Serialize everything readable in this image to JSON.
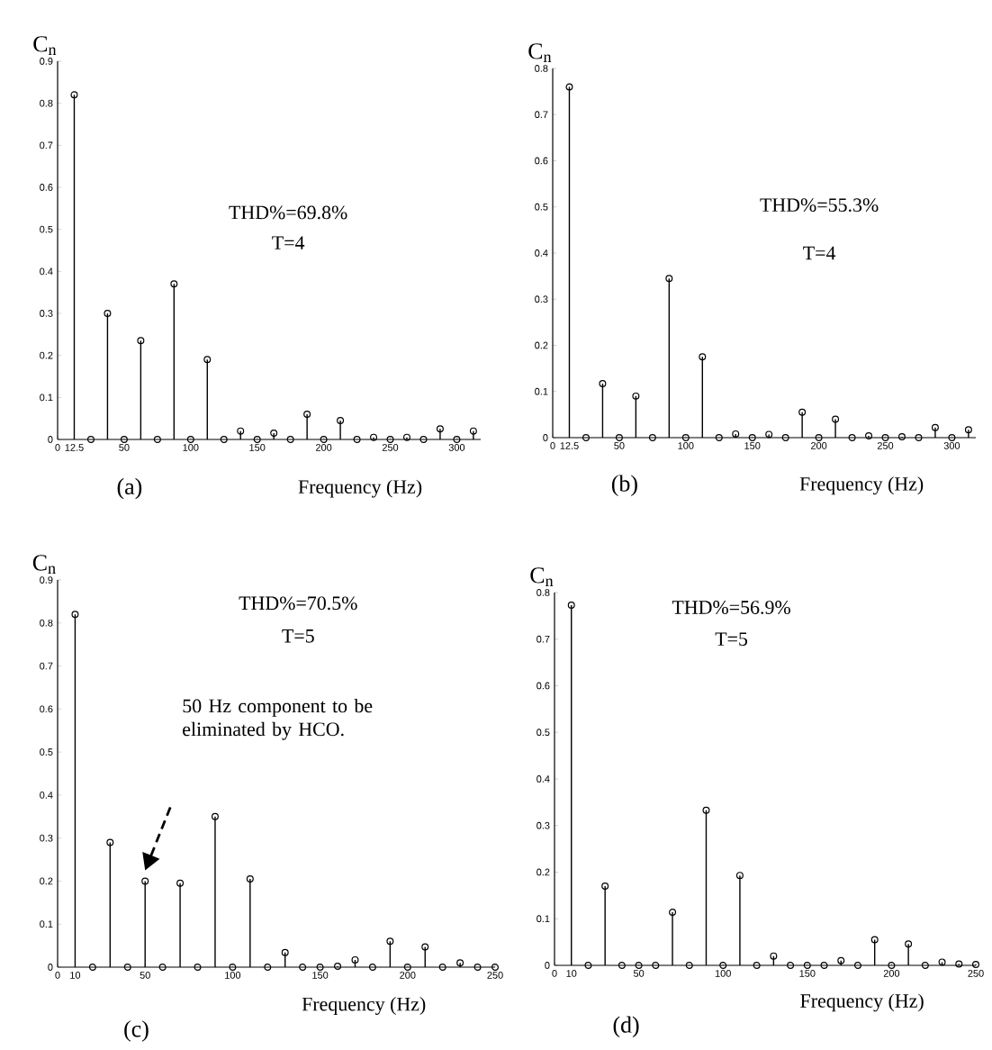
{
  "chart_data": [
    {
      "type": "lollipop",
      "ylabel": "C$_{n}$",
      "xlabel": "Frequency (Hz)",
      "color": "#000000",
      "marker": "circle",
      "x": [
        12.5,
        25,
        37.5,
        50,
        62.5,
        75,
        87.5,
        100,
        112.5,
        125,
        137.5,
        150,
        162.5,
        175,
        187.5,
        200,
        212.5,
        225,
        237.5,
        250,
        262.5,
        275,
        287.5,
        300,
        312.5
      ],
      "values": [
        0.82,
        0,
        0.3,
        0,
        0.235,
        0,
        0.37,
        0,
        0.19,
        0,
        0.02,
        0,
        0.015,
        0,
        0.06,
        0,
        0.045,
        0,
        0.005,
        0,
        0.005,
        0,
        0.025,
        0,
        0.02
      ],
      "xlim": [
        0,
        318
      ],
      "ylim": [
        0,
        0.9
      ],
      "xticks": [
        0,
        12.5,
        50,
        100,
        150,
        200,
        250,
        300
      ],
      "yticks": [
        0,
        0.1,
        0.2,
        0.3,
        0.4,
        0.5,
        0.6,
        0.7,
        0.8,
        0.9
      ],
      "annotations": [
        "THD%=69.8%",
        "T=4",
        "(a)"
      ]
    },
    {
      "type": "lollipop",
      "ylabel": "C$_{n}$",
      "xlabel": "Frequency (Hz)",
      "color": "#000000",
      "marker": "circle",
      "x": [
        12.5,
        25,
        37.5,
        50,
        62.5,
        75,
        87.5,
        100,
        112.5,
        125,
        137.5,
        150,
        162.5,
        175,
        187.5,
        200,
        212.5,
        225,
        237.5,
        250,
        262.5,
        275,
        287.5,
        300,
        312.5
      ],
      "values": [
        0.76,
        0,
        0.117,
        0,
        0.09,
        0,
        0.345,
        0,
        0.175,
        0,
        0.008,
        0,
        0.007,
        0,
        0.055,
        0,
        0.04,
        0,
        0.004,
        0,
        0.002,
        0,
        0.022,
        0,
        0.017
      ],
      "xlim": [
        0,
        318
      ],
      "ylim": [
        0,
        0.8
      ],
      "xticks": [
        0,
        12.5,
        50,
        100,
        150,
        200,
        250,
        300
      ],
      "yticks": [
        0,
        0.1,
        0.2,
        0.3,
        0.4,
        0.5,
        0.6,
        0.7,
        0.8
      ],
      "annotations": [
        "THD%=55.3%",
        "T=4",
        "(b)"
      ]
    },
    {
      "type": "lollipop",
      "ylabel": "C$_{n}$",
      "xlabel": "Frequency (Hz)",
      "color": "#000000",
      "marker": "circle",
      "x": [
        10,
        20,
        30,
        40,
        50,
        60,
        70,
        80,
        90,
        100,
        110,
        120,
        130,
        140,
        150,
        160,
        170,
        180,
        190,
        200,
        210,
        220,
        230,
        240,
        250
      ],
      "values": [
        0.82,
        0,
        0.29,
        0,
        0.2,
        0,
        0.195,
        0,
        0.35,
        0,
        0.205,
        0,
        0.034,
        0,
        0,
        0.002,
        0.017,
        0,
        0.06,
        0,
        0.047,
        0,
        0.01,
        0,
        0
      ],
      "xlim": [
        0,
        250
      ],
      "ylim": [
        0,
        0.9
      ],
      "xticks": [
        0,
        10,
        50,
        100,
        150,
        200,
        250
      ],
      "yticks": [
        0,
        0.1,
        0.2,
        0.3,
        0.4,
        0.5,
        0.6,
        0.7,
        0.8,
        0.9
      ],
      "annotations": [
        "THD%=70.5%",
        "T=5",
        "(c)",
        "50 Hz component to be eliminated by HCO."
      ]
    },
    {
      "type": "lollipop",
      "ylabel": "C$_{n}$",
      "xlabel": "Frequency (Hz)",
      "color": "#000000",
      "marker": "circle",
      "x": [
        10,
        20,
        30,
        40,
        50,
        60,
        70,
        80,
        90,
        100,
        110,
        120,
        130,
        140,
        150,
        160,
        170,
        180,
        190,
        200,
        210,
        220,
        230,
        240,
        250
      ],
      "values": [
        0.773,
        0,
        0.17,
        0,
        0,
        0,
        0.114,
        0,
        0.333,
        0,
        0.193,
        0,
        0.02,
        0,
        0,
        0,
        0.01,
        0,
        0.055,
        0,
        0.046,
        0,
        0.007,
        0.003,
        0.002
      ],
      "xlim": [
        0,
        250
      ],
      "ylim": [
        0,
        0.8
      ],
      "xticks": [
        0,
        10,
        50,
        100,
        150,
        200,
        250
      ],
      "yticks": [
        0,
        0.1,
        0.2,
        0.3,
        0.4,
        0.5,
        0.6,
        0.7,
        0.8
      ],
      "annotations": [
        "THD%=56.9%",
        "T=5",
        "(d)"
      ]
    }
  ]
}
